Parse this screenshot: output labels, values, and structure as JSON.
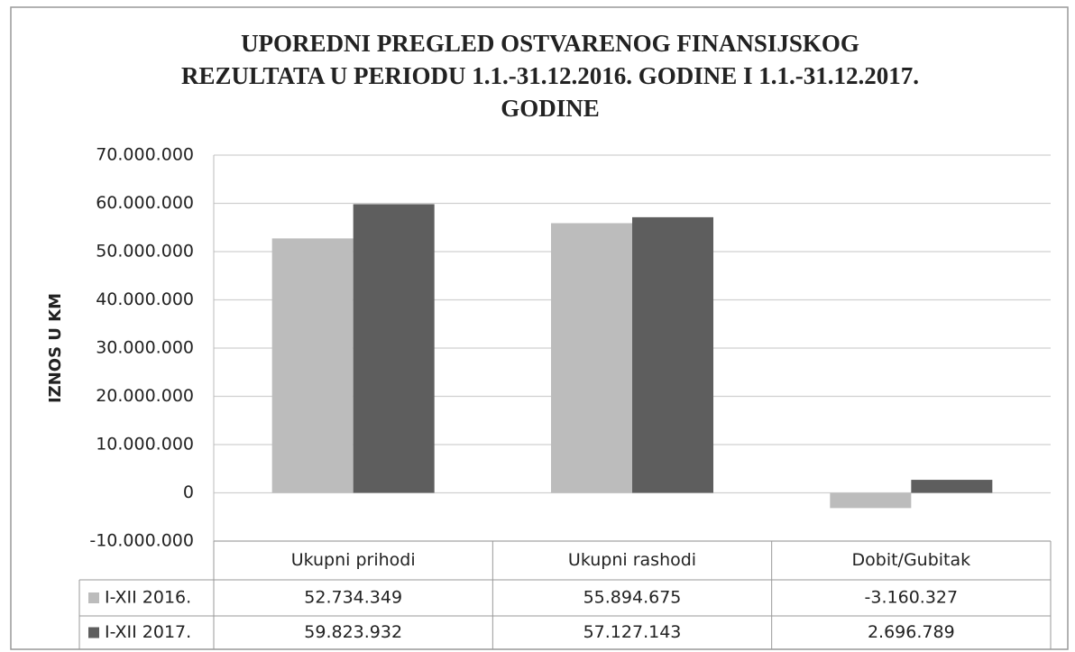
{
  "chart_data": {
    "type": "bar",
    "title": "UPOREDNI PREGLED OSTVARENOG FINANSIJSKOG REZULTATA U PERIODU 1.1.-31.12.2016. GODINE I 1.1.-31.12.2017. GODINE",
    "y_label": "IZNOS U KM",
    "categories": [
      "Ukupni prihodi",
      "Ukupni rashodi",
      "Dobit/Gubitak"
    ],
    "series": [
      {
        "name": "I-XII 2016.",
        "color": "#bcbcbc",
        "values": [
          52734349,
          55894675,
          -3160327
        ],
        "value_labels": [
          "52.734.349",
          "55.894.675",
          "-3.160.327"
        ]
      },
      {
        "name": "I-XII 2017.",
        "color": "#5e5e5e",
        "values": [
          59823932,
          57127143,
          2696789
        ],
        "value_labels": [
          "59.823.932",
          "57.127.143",
          "2.696.789"
        ]
      }
    ],
    "ylim": [
      -10000000,
      70000000
    ],
    "yticks": [
      {
        "value": -10000000,
        "label": "-10.000.000"
      },
      0,
      {
        "value": 10000000,
        "label": "10.000.000"
      },
      {
        "value": 20000000,
        "label": "20.000.000"
      },
      {
        "value": 30000000,
        "label": "30.000.000"
      },
      {
        "value": 40000000,
        "label": "40.000.000"
      },
      {
        "value": 50000000,
        "label": "50.000.000"
      },
      {
        "value": 60000000,
        "label": "60.000.000"
      },
      {
        "value": 70000000,
        "label": "70.000.000"
      }
    ],
    "grid": true
  }
}
